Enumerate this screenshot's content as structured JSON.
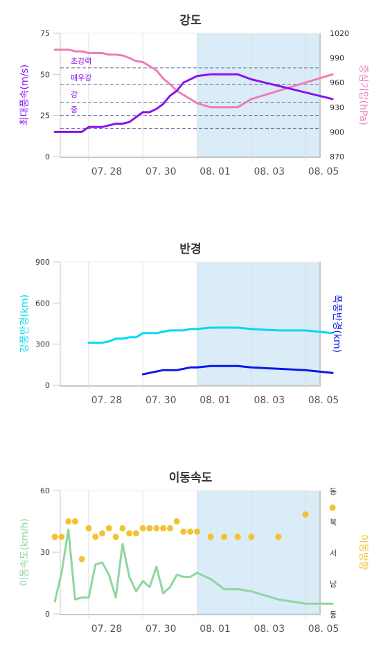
{
  "colors": {
    "wind": "#8a12ee",
    "pressure": "#f07cb6",
    "gale": "#00d8f8",
    "storm": "#0a18e8",
    "speed": "#8ed6a0",
    "direction": "#f2c232",
    "forecast_band": "#d9ecf7",
    "threshold": "#6a6aa8"
  },
  "chart_data": [
    {
      "type": "line",
      "title": "강도",
      "x_ticks": [
        "07. 28",
        "07. 30",
        "08. 01",
        "08. 03",
        "08. 05"
      ],
      "forecast_start": "08. 01",
      "y_left": {
        "label": "최대풍속(m/s)",
        "ticks": [
          0,
          25,
          50,
          75
        ],
        "range": [
          0,
          75
        ]
      },
      "y_right": {
        "label": "중심기압(hPa)",
        "ticks": [
          870,
          900,
          930,
          960,
          990,
          1020
        ],
        "range": [
          870,
          1020
        ]
      },
      "thresholds": [
        {
          "label": "초강력",
          "value": 54
        },
        {
          "label": "매우강",
          "value": 44
        },
        {
          "label": "강",
          "value": 33
        },
        {
          "label": "중",
          "value": 25
        },
        {
          "label": "",
          "value": 17
        }
      ],
      "series": [
        {
          "name": "최대풍속",
          "axis": "left",
          "x": [
            "07.26 18",
            "07.27 00",
            "07.27 06",
            "07.27 12",
            "07.27 18",
            "07.28 00",
            "07.28 06",
            "07.28 12",
            "07.28 18",
            "07.29 00",
            "07.29 06",
            "07.29 12",
            "07.29 18",
            "07.30 00",
            "07.30 06",
            "07.30 12",
            "07.30 18",
            "07.31 00",
            "07.31 06",
            "07.31 12",
            "07.31 18",
            "08.01 00",
            "08.01 12",
            "08.02 00",
            "08.02 12",
            "08.03 00",
            "08.04 00",
            "08.05 00",
            "08.06 00"
          ],
          "y": [
            15,
            15,
            15,
            15,
            15,
            18,
            18,
            18,
            19,
            20,
            20,
            21,
            24,
            27,
            27,
            29,
            32,
            37,
            40,
            45,
            47,
            49,
            50,
            50,
            50,
            47,
            43,
            39,
            35
          ]
        },
        {
          "name": "중심기압",
          "axis": "right",
          "x": [
            "07.26 18",
            "07.27 00",
            "07.27 06",
            "07.27 12",
            "07.27 18",
            "07.28 00",
            "07.28 06",
            "07.28 12",
            "07.28 18",
            "07.29 00",
            "07.29 06",
            "07.29 12",
            "07.29 18",
            "07.30 00",
            "07.30 06",
            "07.30 12",
            "07.30 18",
            "07.31 00",
            "07.31 06",
            "07.31 12",
            "07.31 18",
            "08.01 00",
            "08.01 12",
            "08.02 00",
            "08.02 12",
            "08.03 00",
            "08.04 00",
            "08.05 00",
            "08.06 00"
          ],
          "y": [
            1000,
            1000,
            1000,
            998,
            998,
            996,
            996,
            996,
            994,
            994,
            993,
            990,
            986,
            985,
            980,
            975,
            965,
            958,
            950,
            945,
            940,
            935,
            930,
            930,
            930,
            940,
            950,
            960,
            970
          ]
        }
      ]
    },
    {
      "type": "line",
      "title": "반경",
      "x_ticks": [
        "07. 28",
        "07. 30",
        "08. 01",
        "08. 03",
        "08. 05"
      ],
      "forecast_start": "08. 01",
      "y_left": {
        "label": "강풍반경(km)",
        "ticks": [
          0,
          300,
          600,
          900
        ],
        "range": [
          0,
          900
        ]
      },
      "y_right": {
        "label": "폭풍반경(km)"
      },
      "series": [
        {
          "name": "강풍반경",
          "x": [
            "07.28 00",
            "07.28 06",
            "07.28 12",
            "07.28 18",
            "07.29 00",
            "07.29 06",
            "07.29 12",
            "07.29 18",
            "07.30 00",
            "07.30 06",
            "07.30 12",
            "07.30 18",
            "07.31 00",
            "07.31 06",
            "07.31 12",
            "07.31 18",
            "08.01 00",
            "08.01 12",
            "08.02 00",
            "08.02 12",
            "08.03 00",
            "08.04 00",
            "08.05 00",
            "08.06 00"
          ],
          "y": [
            310,
            310,
            310,
            320,
            340,
            340,
            350,
            350,
            380,
            380,
            380,
            390,
            400,
            400,
            400,
            410,
            410,
            420,
            420,
            420,
            410,
            400,
            400,
            380
          ]
        },
        {
          "name": "폭풍반경",
          "x": [
            "07.30 00",
            "07.30 06",
            "07.30 12",
            "07.30 18",
            "07.31 00",
            "07.31 06",
            "07.31 12",
            "07.31 18",
            "08.01 00",
            "08.01 12",
            "08.02 00",
            "08.02 12",
            "08.03 00",
            "08.04 00",
            "08.05 00",
            "08.06 00"
          ],
          "y": [
            80,
            90,
            100,
            110,
            110,
            110,
            120,
            130,
            130,
            140,
            140,
            140,
            130,
            120,
            110,
            90
          ]
        }
      ]
    },
    {
      "type": "line",
      "title": "이동속도",
      "x_ticks": [
        "07. 28",
        "07. 30",
        "08. 01",
        "08. 03",
        "08. 05"
      ],
      "forecast_start": "08. 01",
      "y_left": {
        "label": "이동속도(km/h)",
        "ticks": [
          0,
          30,
          60
        ],
        "range": [
          0,
          60
        ]
      },
      "y_right": {
        "label": "이동방향",
        "ticks": [
          "동",
          "남",
          "서",
          "북",
          "동"
        ],
        "range": [
          0,
          360
        ]
      },
      "series": [
        {
          "name": "이동속도",
          "x": [
            "07.26 18",
            "07.27 00",
            "07.27 06",
            "07.27 12",
            "07.27 18",
            "07.28 00",
            "07.28 06",
            "07.28 12",
            "07.28 18",
            "07.29 00",
            "07.29 06",
            "07.29 12",
            "07.29 18",
            "07.30 00",
            "07.30 06",
            "07.30 12",
            "07.30 18",
            "07.31 00",
            "07.31 06",
            "07.31 12",
            "07.31 18",
            "08.01 00",
            "08.01 12",
            "08.02 00",
            "08.02 12",
            "08.03 00",
            "08.04 00",
            "08.05 00",
            "08.06 00"
          ],
          "y": [
            6,
            20,
            41,
            7,
            8,
            8,
            24,
            25,
            19,
            8,
            34,
            18,
            11,
            16,
            13,
            23,
            10,
            13,
            19,
            18,
            18,
            20,
            17,
            12,
            12,
            11,
            7,
            5,
            5
          ]
        },
        {
          "name": "이동방향",
          "type": "scatter",
          "x": [
            "07.26 18",
            "07.27 00",
            "07.27 06",
            "07.27 12",
            "07.27 18",
            "07.28 00",
            "07.28 06",
            "07.28 12",
            "07.28 18",
            "07.29 00",
            "07.29 06",
            "07.29 12",
            "07.29 18",
            "07.30 00",
            "07.30 06",
            "07.30 12",
            "07.30 18",
            "07.31 00",
            "07.31 06",
            "07.31 12",
            "07.31 18",
            "08.01 00",
            "08.01 12",
            "08.02 00",
            "08.02 12",
            "08.03 00",
            "08.04 00",
            "08.05 00",
            "08.06 00"
          ],
          "y": [
            225,
            225,
            270,
            270,
            160,
            250,
            225,
            235,
            250,
            225,
            250,
            235,
            235,
            250,
            250,
            250,
            250,
            250,
            270,
            240,
            240,
            240,
            225,
            225,
            225,
            225,
            225,
            290,
            310
          ]
        }
      ]
    }
  ]
}
